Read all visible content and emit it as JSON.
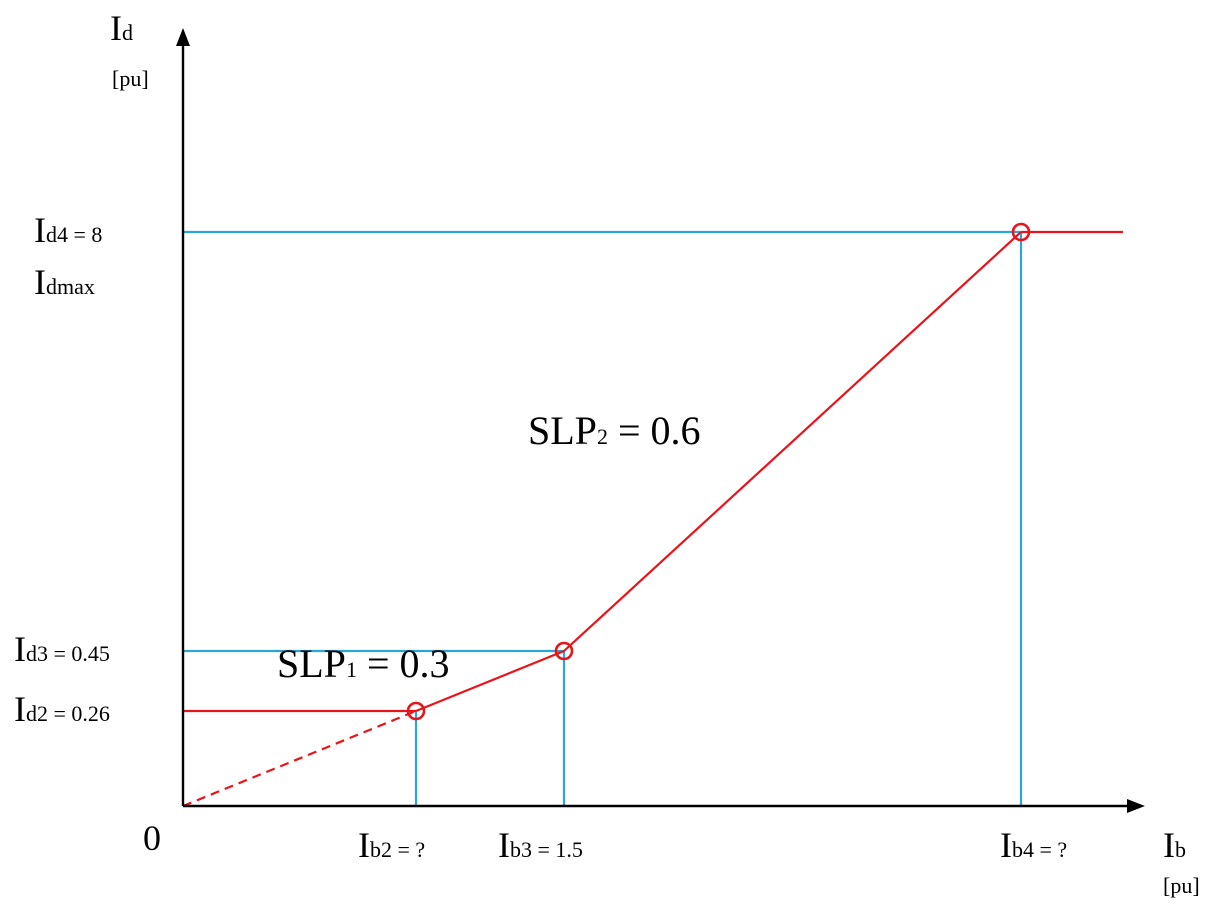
{
  "colors": {
    "axis": "#000000",
    "curve": "#e8141c",
    "guide": "#2aa7d8"
  },
  "axes": {
    "y": {
      "symbol": "I",
      "subscript": "d",
      "unit": "[pu]"
    },
    "x": {
      "symbol": "I",
      "subscript": "b",
      "unit": "[pu]"
    },
    "origin": "0"
  },
  "labels": {
    "id4": {
      "main": "I",
      "sub": "d4 = 8"
    },
    "idmax": {
      "main": "I",
      "sub": "dmax"
    },
    "id3": {
      "main": "I",
      "sub": "d3 = 0.45"
    },
    "id2": {
      "main": "I",
      "sub": "d2 = 0.26"
    },
    "ib2": {
      "main": "I",
      "sub": "b2 = ?"
    },
    "ib3": {
      "main": "I",
      "sub": "b3 = 1.5"
    },
    "ib4": {
      "main": "I",
      "sub": "b4 = ?"
    },
    "slp1": {
      "main": "SLP",
      "sub": "1",
      "rest": " = 0.3"
    },
    "slp2": {
      "main": "SLP",
      "sub": "2",
      "rest": " = 0.6"
    }
  },
  "characteristic": {
    "points": [
      {
        "name": "point-2",
        "Ib": "?",
        "Id": 0.26
      },
      {
        "name": "point-3",
        "Ib": 1.5,
        "Id": 0.45
      },
      {
        "name": "point-4",
        "Ib": "?",
        "Id": 8
      }
    ],
    "slopes": [
      0.3,
      0.6
    ]
  }
}
